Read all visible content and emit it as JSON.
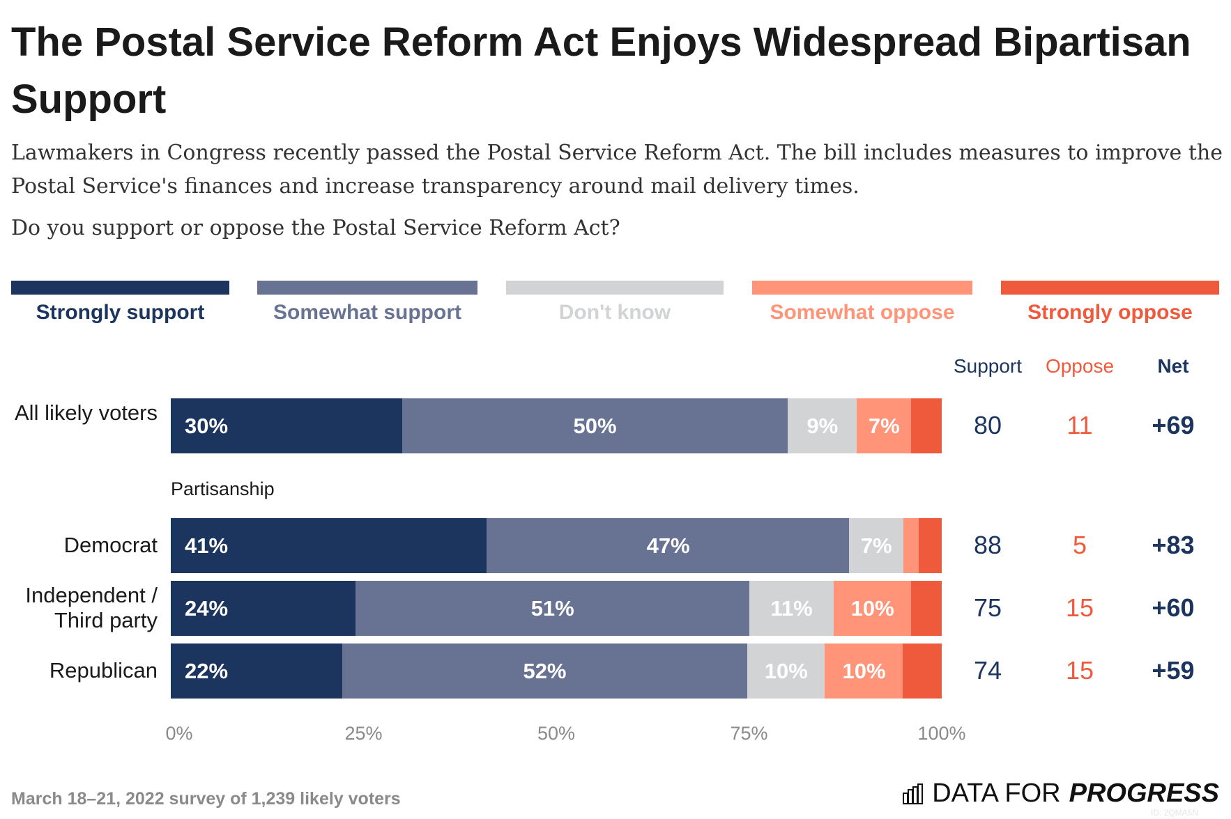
{
  "title": "The Postal Service Reform Act Enjoys Widespread Bipartisan Support",
  "subtitle": "Lawmakers in Congress recently passed the Postal Service Reform Act. The bill includes measures to improve the Postal Service's finances and increase transparency around mail delivery times.",
  "question": "Do you support or oppose the Postal Service Reform Act?",
  "footer": {
    "note": "March 18–21, 2022 survey of 1,239 likely voters",
    "logo_text_light": "DATA FOR",
    "logo_text_bold": "PROGRESS",
    "logo_id": "ID: 2QMA5N"
  },
  "columns": {
    "support": "Support",
    "oppose": "Oppose",
    "net": "Net"
  },
  "colors": {
    "support_text": "#1c355e",
    "oppose_text": "#f05a3c"
  },
  "chart_data": {
    "type": "bar",
    "orientation": "horizontal-stacked",
    "xlim": [
      0,
      100
    ],
    "ticks": [
      "0%",
      "25%",
      "50%",
      "75%",
      "100%"
    ],
    "series": [
      {
        "name": "Strongly support",
        "color": "#1c355e",
        "label_color": "#1c355e"
      },
      {
        "name": "Somewhat support",
        "color": "#687292",
        "label_color": "#687292"
      },
      {
        "name": "Don't know",
        "color": "#d2d3d5",
        "label_color": "#d2d3d5"
      },
      {
        "name": "Somewhat oppose",
        "color": "#ff9478",
        "label_color": "#ff9478"
      },
      {
        "name": "Strongly oppose",
        "color": "#f05a3c",
        "label_color": "#f05a3c"
      }
    ],
    "group_label": "Partisanship",
    "rows": [
      {
        "label": "All likely voters",
        "values": [
          30,
          50,
          9,
          7,
          4
        ],
        "labels": [
          "30%",
          "50%",
          "9%",
          "7%",
          ""
        ],
        "support": "80",
        "oppose": "11",
        "net": "+69"
      },
      {
        "label": "Democrat",
        "values": [
          41,
          47,
          7,
          2,
          3
        ],
        "labels": [
          "41%",
          "47%",
          "7%",
          "",
          ""
        ],
        "support": "88",
        "oppose": "5",
        "net": "+83"
      },
      {
        "label": "Independent / Third party",
        "values": [
          24,
          51,
          11,
          10,
          4
        ],
        "labels": [
          "24%",
          "51%",
          "11%",
          "10%",
          ""
        ],
        "support": "75",
        "oppose": "15",
        "net": "+60"
      },
      {
        "label": "Republican",
        "values": [
          22,
          52,
          10,
          10,
          5
        ],
        "labels": [
          "22%",
          "52%",
          "10%",
          "10%",
          ""
        ],
        "support": "74",
        "oppose": "15",
        "net": "+59"
      }
    ]
  }
}
